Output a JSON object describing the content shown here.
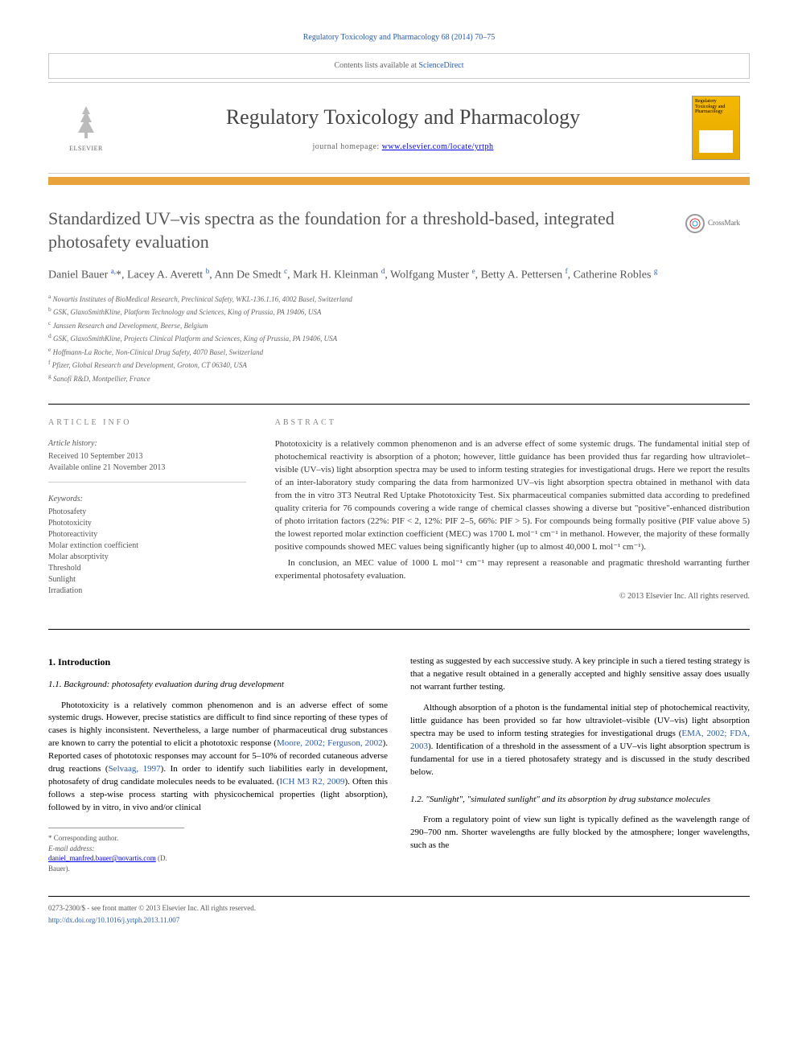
{
  "citation": "Regulatory Toxicology and Pharmacology 68 (2014) 70–75",
  "contents_banner": {
    "prefix": "Contents lists available at ",
    "link": "ScienceDirect"
  },
  "journal": {
    "title": "Regulatory Toxicology and Pharmacology",
    "homepage_label": "journal homepage: ",
    "homepage_url": "www.elsevier.com/locate/yrtph",
    "publisher": "ELSEVIER",
    "cover_text": "Regulatory Toxicology and Pharmacology"
  },
  "article": {
    "title": "Standardized UV–vis spectra as the foundation for a threshold-based, integrated photosafety evaluation",
    "crossmark": "CrossMark",
    "authors_html": "Daniel Bauer <sup>a,</sup>*, Lacey A. Averett <sup>b</sup>, Ann De Smedt <sup>c</sup>, Mark H. Kleinman <sup>d</sup>, Wolfgang Muster <sup>e</sup>, Betty A. Pettersen <sup>f</sup>, Catherine Robles <sup>g</sup>",
    "affiliations": [
      {
        "sup": "a",
        "text": "Novartis Institutes of BioMedical Research, Preclinical Safety, WKL-136.1.16, 4002 Basel, Switzerland"
      },
      {
        "sup": "b",
        "text": "GSK, GlaxoSmithKline, Platform Technology and Sciences, King of Prussia, PA 19406, USA"
      },
      {
        "sup": "c",
        "text": "Janssen Research and Development, Beerse, Belgium"
      },
      {
        "sup": "d",
        "text": "GSK, GlaxoSmithKline, Projects Clinical Platform and Sciences, King of Prussia, PA 19406, USA"
      },
      {
        "sup": "e",
        "text": "Hoffmann-La Roche, Non-Clinical Drug Safety, 4070 Basel, Switzerland"
      },
      {
        "sup": "f",
        "text": "Pfizer, Global Research and Development, Groton, CT 06340, USA"
      },
      {
        "sup": "g",
        "text": "Sanofi R&D, Montpellier, France"
      }
    ]
  },
  "info": {
    "heading": "ARTICLE INFO",
    "history_label": "Article history:",
    "received": "Received 10 September 2013",
    "online": "Available online 21 November 2013",
    "keywords_label": "Keywords:",
    "keywords": [
      "Photosafety",
      "Phototoxicity",
      "Photoreactivity",
      "Molar extinction coefficient",
      "Molar absorptivity",
      "Threshold",
      "Sunlight",
      "Irradiation"
    ]
  },
  "abstract": {
    "heading": "ABSTRACT",
    "p1": "Phototoxicity is a relatively common phenomenon and is an adverse effect of some systemic drugs. The fundamental initial step of photochemical reactivity is absorption of a photon; however, little guidance has been provided thus far regarding how ultraviolet–visible (UV–vis) light absorption spectra may be used to inform testing strategies for investigational drugs. Here we report the results of an inter-laboratory study comparing the data from harmonized UV–vis light absorption spectra obtained in methanol with data from the in vitro 3T3 Neutral Red Uptake Phototoxicity Test. Six pharmaceutical companies submitted data according to predefined quality criteria for 76 compounds covering a wide range of chemical classes showing a diverse but \"positive\"-enhanced distribution of photo irritation factors (22%: PIF < 2, 12%: PIF 2–5, 66%: PIF > 5). For compounds being formally positive (PIF value above 5) the lowest reported molar extinction coefficient (MEC) was 1700 L mol⁻¹ cm⁻¹ in methanol. However, the majority of these formally positive compounds showed MEC values being significantly higher (up to almost 40,000 L mol⁻¹ cm⁻¹).",
    "p2": "In conclusion, an MEC value of 1000 L mol⁻¹ cm⁻¹ may represent a reasonable and pragmatic threshold warranting further experimental photosafety evaluation.",
    "copyright": "© 2013 Elsevier Inc. All rights reserved."
  },
  "body": {
    "s1": "1. Introduction",
    "s11": "1.1. Background: photosafety evaluation during drug development",
    "p1": "Phototoxicity is a relatively common phenomenon and is an adverse effect of some systemic drugs. However, precise statistics are difficult to find since reporting of these types of cases is highly inconsistent. Nevertheless, a large number of pharmaceutical drug substances are known to carry the potential to elicit a phototoxic response (",
    "c1": "Moore, 2002; Ferguson, 2002",
    "p1b": "). Reported cases of phototoxic responses may account for 5–10% of recorded cutaneous adverse drug reactions (",
    "c2": "Selvaag, 1997",
    "p1c": "). In order to identify such liabilities early in development, photosafety of drug candidate molecules needs to be evaluated. (",
    "c3": "ICH M3 R2, 2009",
    "p1d": "). Often this follows a step-wise process starting with physicochemical properties (light absorption), followed by in vitro, in vivo and/or clinical",
    "p2": "testing as suggested by each successive study. A key principle in such a tiered testing strategy is that a negative result obtained in a generally accepted and highly sensitive assay does usually not warrant further testing.",
    "p3": "Although absorption of a photon is the fundamental initial step of photochemical reactivity, little guidance has been provided so far how ultraviolet–visible (UV–vis) light absorption spectra may be used to inform testing strategies for investigational drugs (",
    "c4": "EMA, 2002; FDA, 2003",
    "p3b": "). Identification of a threshold in the assessment of a UV–vis light absorption spectrum is fundamental for use in a tiered photosafety strategy and is discussed in the study described below.",
    "s12": "1.2. \"Sunlight\", \"simulated sunlight\" and its absorption by drug substance molecules",
    "p4": "From a regulatory point of view sun light is typically defined as the wavelength range of 290–700 nm. Shorter wavelengths are fully blocked by the atmosphere; longer wavelengths, such as the"
  },
  "corresp": {
    "star": "* Corresponding author.",
    "email_label": "E-mail address: ",
    "email": "daniel_manfred.bauer@novartis.com",
    "email_suffix": " (D. Bauer)."
  },
  "footer": {
    "line1": "0273-2300/$ - see front matter © 2013 Elsevier Inc. All rights reserved.",
    "doi": "http://dx.doi.org/10.1016/j.yrtph.2013.11.007"
  }
}
